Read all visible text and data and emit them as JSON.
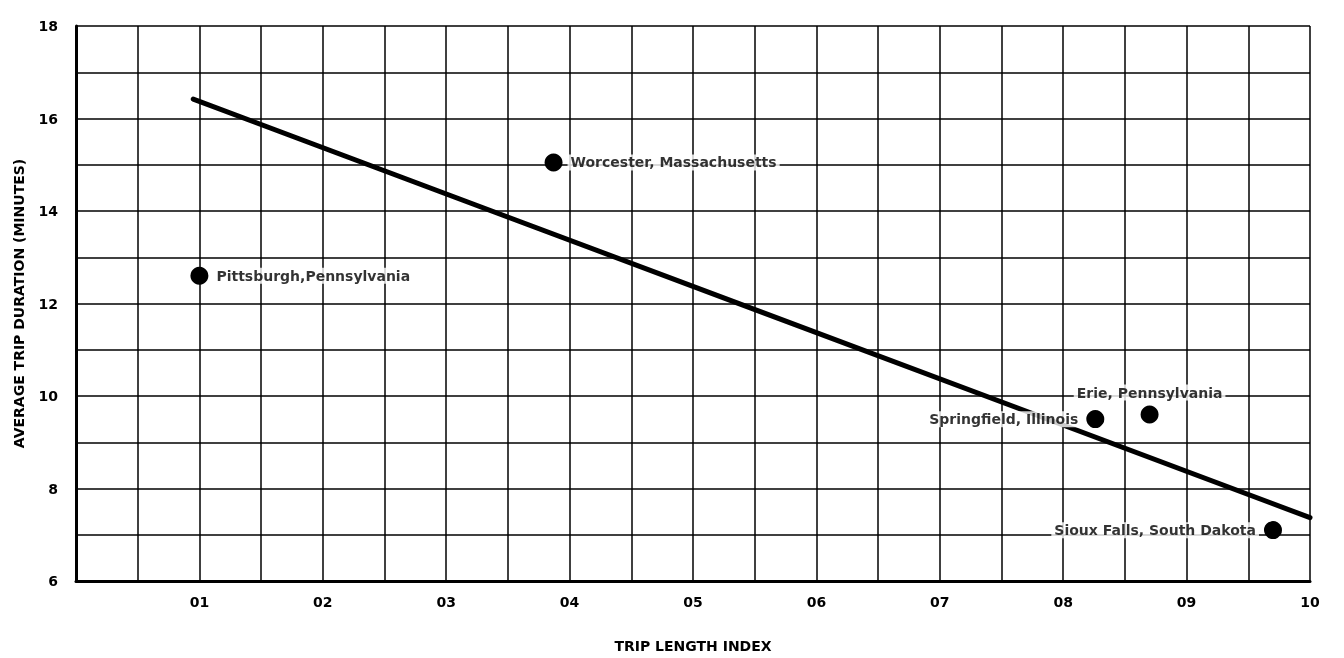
{
  "chart_data": {
    "type": "scatter",
    "xlabel": "TRIP LENGTH INDEX",
    "ylabel": "AVERAGE TRIP DURATION (MINUTES)",
    "xlim": [
      0,
      10
    ],
    "xticks": [
      {
        "value": 1,
        "label": "01"
      },
      {
        "value": 2,
        "label": "02"
      },
      {
        "value": 3,
        "label": "03"
      },
      {
        "value": 4,
        "label": "04"
      },
      {
        "value": 5,
        "label": "05"
      },
      {
        "value": 6,
        "label": "06"
      },
      {
        "value": 7,
        "label": "07"
      },
      {
        "value": 8,
        "label": "08"
      },
      {
        "value": 9,
        "label": "09"
      },
      10
    ],
    "ylim": [
      6,
      18
    ],
    "yticks": [
      6,
      8,
      10,
      12,
      14,
      16,
      18
    ],
    "grid": true,
    "series": [
      {
        "color": "#000000",
        "marker": "circle",
        "x": [
          1.0,
          3.87,
          8.26,
          8.7,
          9.7
        ],
        "values": [
          12.6,
          15.05,
          9.5,
          9.6,
          7.1
        ]
      },
      {
        "type": "line",
        "color": "#000000",
        "marker": "none",
        "line_style": "solid",
        "x": [
          0.95,
          10
        ],
        "values": [
          16.42,
          7.37
        ]
      }
    ],
    "annotations": [
      {
        "text": "Pittsburgh,Pennsylvania",
        "x": 1.0,
        "y": 12.6
      },
      {
        "text": "Worcester, Massachusetts",
        "x": 3.87,
        "y": 15.05
      },
      {
        "text": "Springfield, Illinois",
        "x": 8.26,
        "y": 9.5
      },
      {
        "text": "Erie, Pennsylvania",
        "x": 8.7,
        "y": 9.6
      },
      {
        "text": "Sioux Falls, South Dakota",
        "x": 9.7,
        "y": 7.1
      }
    ]
  }
}
